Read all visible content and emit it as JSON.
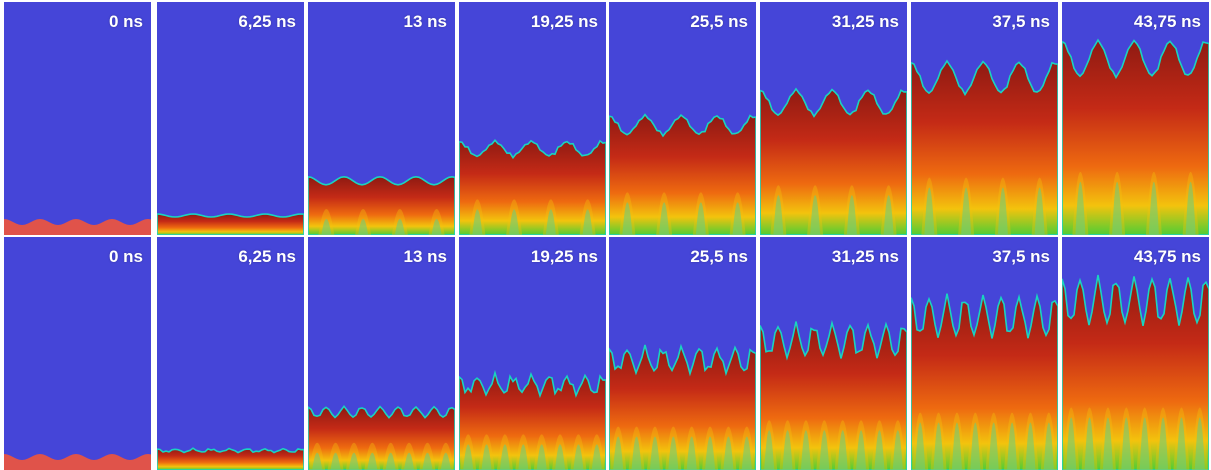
{
  "figure": {
    "rows": [
      {
        "id": "top",
        "panels": [
          {
            "time": "0 ns"
          },
          {
            "time": "6,25 ns"
          },
          {
            "time": "13 ns"
          },
          {
            "time": "19,25 ns"
          },
          {
            "time": "25,5 ns"
          },
          {
            "time": "31,25 ns"
          },
          {
            "time": "37,5 ns"
          },
          {
            "time": "43,75 ns"
          }
        ]
      },
      {
        "id": "bottom",
        "panels": [
          {
            "time": "0 ns"
          },
          {
            "time": "6,25 ns"
          },
          {
            "time": "13 ns"
          },
          {
            "time": "19,25 ns"
          },
          {
            "time": "25,5 ns"
          },
          {
            "time": "31,25 ns"
          },
          {
            "time": "37,5 ns"
          },
          {
            "time": "43,75 ns"
          }
        ]
      }
    ],
    "colors": {
      "background": "#4545d8",
      "initial_interface": "#e0534a",
      "dark_red": "#8e1a12",
      "red": "#c42a16",
      "orange": "#ee6a10",
      "yellow": "#f3c30d",
      "green": "#4fcd35",
      "cyan": "#19d4c0"
    }
  }
}
